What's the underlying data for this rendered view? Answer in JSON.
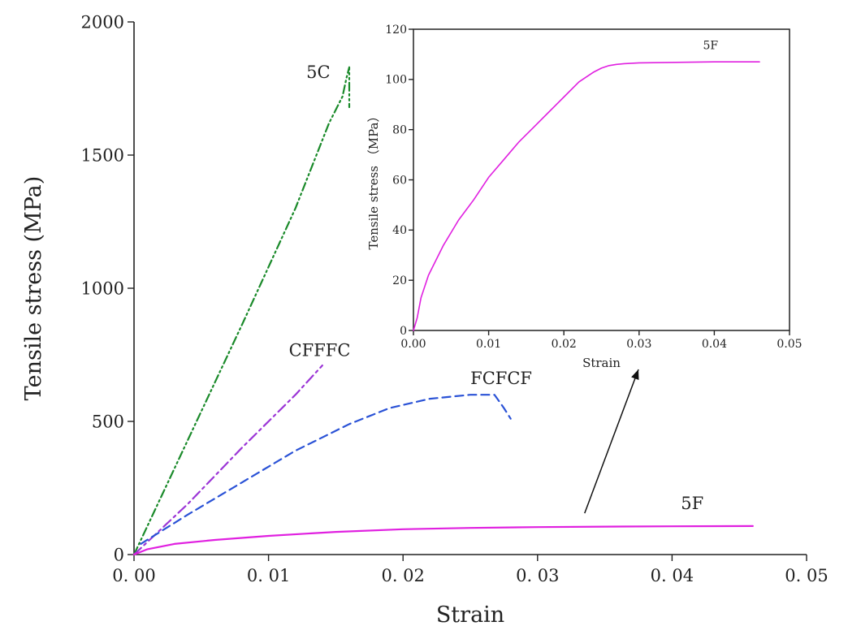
{
  "chart_data": [
    {
      "type": "line",
      "title": "",
      "xlabel": "Strain",
      "ylabel": "Tensile stress (MPa)",
      "xlim": [
        0,
        0.05
      ],
      "ylim": [
        0,
        2000
      ],
      "xticks": [
        "0. 00",
        "0. 01",
        "0. 02",
        "0. 03",
        "0. 04",
        "0. 05"
      ],
      "yticks": [
        "0",
        "500",
        "1000",
        "1500",
        "2000"
      ],
      "xtick_values": [
        0,
        0.01,
        0.02,
        0.03,
        0.04,
        0.05
      ],
      "ytick_values": [
        0,
        500,
        1000,
        1500,
        2000
      ],
      "grid": false,
      "series": [
        {
          "name": "5C",
          "color": "#1a8a2a",
          "dash": "dash-dot-dot",
          "x": [
            0,
            0.004,
            0.008,
            0.012,
            0.0145,
            0.0155,
            0.0158,
            0.016,
            0.016
          ],
          "y": [
            0,
            430,
            860,
            1300,
            1620,
            1720,
            1790,
            1830,
            1680
          ]
        },
        {
          "name": "CFFFC",
          "color": "#9b35d6",
          "dash": "dash-dot",
          "x": [
            0,
            0.004,
            0.008,
            0.012,
            0.014
          ],
          "y": [
            0,
            190,
            400,
            600,
            710
          ]
        },
        {
          "name": "FCFCF",
          "color": "#2a52d6",
          "dash": "dash",
          "x": [
            0.0005,
            0.004,
            0.008,
            0.012,
            0.016,
            0.019,
            0.022,
            0.025,
            0.0268,
            0.0275,
            0.028
          ],
          "y": [
            40,
            150,
            270,
            390,
            490,
            550,
            585,
            600,
            600,
            550,
            510
          ]
        },
        {
          "name": "5F",
          "color": "#e020e0",
          "dash": "solid",
          "x": [
            0,
            0.001,
            0.003,
            0.006,
            0.01,
            0.015,
            0.02,
            0.025,
            0.03,
            0.035,
            0.04,
            0.046
          ],
          "y": [
            0,
            20,
            40,
            55,
            70,
            85,
            95,
            100,
            103,
            105,
            106,
            107
          ]
        }
      ],
      "annotations": [
        {
          "text": "5C",
          "x": 0.0137,
          "y": 1790,
          "anchor": "middle"
        },
        {
          "text": "CFFFC",
          "x": 0.0138,
          "y": 745,
          "anchor": "middle"
        },
        {
          "text": "FCFCF",
          "x": 0.0273,
          "y": 640,
          "anchor": "middle"
        },
        {
          "text": "5F",
          "x": 0.0415,
          "y": 170,
          "anchor": "middle"
        }
      ],
      "arrow": {
        "from": [
          0.0335,
          155
        ],
        "to": [
          0.0375,
          695
        ]
      }
    },
    {
      "type": "line",
      "title": "",
      "xlabel": "Strain",
      "ylabel": "Tensile stress （MPa）",
      "xlim": [
        0,
        0.05
      ],
      "ylim": [
        0,
        120
      ],
      "xticks": [
        "0.00",
        "0.01",
        "0.02",
        "0.03",
        "0.04",
        "0.05"
      ],
      "yticks": [
        "0",
        "20",
        "40",
        "60",
        "80",
        "100",
        "120"
      ],
      "xtick_values": [
        0,
        0.01,
        0.02,
        0.03,
        0.04,
        0.05
      ],
      "ytick_values": [
        0,
        20,
        40,
        60,
        80,
        100,
        120
      ],
      "grid": false,
      "series": [
        {
          "name": "5F",
          "color": "#e020e0",
          "dash": "solid",
          "x": [
            0,
            0.0005,
            0.001,
            0.002,
            0.004,
            0.006,
            0.008,
            0.01,
            0.012,
            0.014,
            0.016,
            0.018,
            0.02,
            0.022,
            0.023,
            0.024,
            0.025,
            0.026,
            0.027,
            0.028,
            0.03,
            0.035,
            0.04,
            0.046
          ],
          "y": [
            0,
            5,
            13,
            22,
            34,
            44,
            52,
            61,
            68,
            75,
            81,
            87,
            93,
            99,
            101,
            103,
            104.5,
            105.5,
            106,
            106.3,
            106.6,
            106.8,
            107,
            107
          ]
        }
      ],
      "annotations": [
        {
          "text": "5F",
          "x": 0.0395,
          "y": 112,
          "anchor": "middle"
        }
      ]
    }
  ]
}
